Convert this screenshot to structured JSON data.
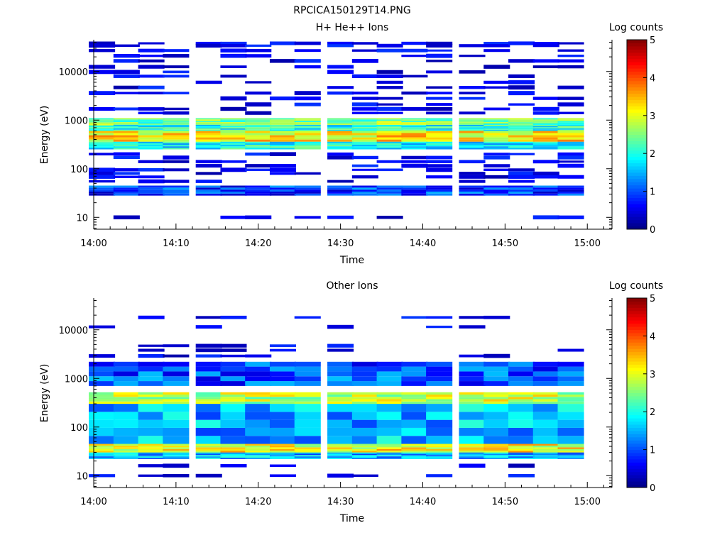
{
  "page_title": "RPCICA150129T14.PNG",
  "colorbar": {
    "label": "Log counts",
    "ticks": [
      "0",
      "1",
      "2",
      "3",
      "4",
      "5"
    ],
    "min": 0,
    "max": 5,
    "colormap": "jet"
  },
  "chart_data": [
    {
      "type": "heatmap",
      "title": "H+ He++ Ions",
      "xlabel": "Time",
      "ylabel": "Energy (eV)",
      "x_ticks": [
        "14:00",
        "14:10",
        "14:20",
        "14:30",
        "14:40",
        "14:50",
        "15:00"
      ],
      "y_ticks": [
        "10",
        "100",
        "1000",
        "10000"
      ],
      "ylim": [
        5.7,
        45000
      ],
      "y_scale": "log",
      "value_scale": "Log counts 0-5",
      "time_bins": [
        "14:01",
        "14:04",
        "14:07",
        "14:10",
        "14:14",
        "14:17",
        "14:20",
        "14:23",
        "14:26",
        "14:30",
        "14:33",
        "14:36",
        "14:39",
        "14:42",
        "14:46",
        "14:49",
        "14:52",
        "14:55",
        "14:58"
      ],
      "dominant_bands": [
        {
          "energy_eV": [
            28,
            45
          ],
          "typical_log_counts": 0.9
        },
        {
          "energy_eV": [
            250,
            360
          ],
          "typical_log_counts": 1.9
        },
        {
          "energy_eV": [
            360,
            600
          ],
          "typical_log_counts": 3.2
        },
        {
          "energy_eV": [
            600,
            800
          ],
          "typical_log_counts": 2.0
        },
        {
          "energy_eV": [
            800,
            1100
          ],
          "typical_log_counts": 2.4
        }
      ],
      "sparse_lines_eV": [
        38000,
        34000,
        27000,
        21000,
        16500,
        12500,
        9800,
        8000,
        6000,
        4700,
        3600,
        2800,
        2100,
        1700,
        1400,
        200,
        170,
        140,
        115,
        95,
        80,
        68,
        55,
        10
      ]
    },
    {
      "type": "heatmap",
      "title": "Other Ions",
      "xlabel": "Time",
      "ylabel": "Energy (eV)",
      "x_ticks": [
        "14:00",
        "14:10",
        "14:20",
        "14:30",
        "14:40",
        "14:50",
        "15:00"
      ],
      "y_ticks": [
        "10",
        "100",
        "1000",
        "10000"
      ],
      "ylim": [
        5.7,
        45000
      ],
      "y_scale": "log",
      "value_scale": "Log counts 0-5",
      "time_bins": [
        "14:01",
        "14:04",
        "14:07",
        "14:10",
        "14:14",
        "14:17",
        "14:20",
        "14:23",
        "14:26",
        "14:30",
        "14:33",
        "14:36",
        "14:39",
        "14:42",
        "14:46",
        "14:49",
        "14:52",
        "14:55",
        "14:58"
      ],
      "dominant_bands": [
        {
          "energy_eV": [
            22,
            30
          ],
          "typical_log_counts": 1.5
        },
        {
          "energy_eV": [
            30,
            45
          ],
          "typical_log_counts": 3.1
        },
        {
          "energy_eV": [
            45,
            300
          ],
          "typical_log_counts": 1.5
        },
        {
          "energy_eV": [
            300,
            520
          ],
          "typical_log_counts": 2.8
        },
        {
          "energy_eV": [
            700,
            2200
          ],
          "typical_log_counts": 1.0
        }
      ],
      "sparse_lines_eV": [
        18000,
        11500,
        4700,
        3800,
        2900,
        16,
        10
      ]
    }
  ]
}
